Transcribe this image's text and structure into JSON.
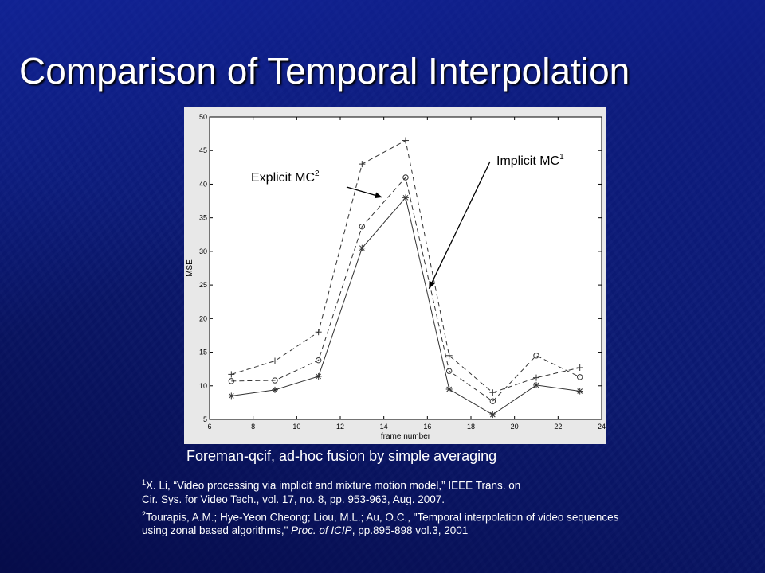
{
  "slide": {
    "title": "Comparison of Temporal Interpolation",
    "caption": "Foreman-qcif, ad-hoc fusion by simple averaging",
    "references": [
      {
        "marker": "1",
        "line1": "X. Li, “Video processing via implicit and mixture motion model,” IEEE Trans. on",
        "line2": "Cir. Sys. for Video Tech., vol. 17, no. 8, pp. 953-963, Aug. 2007."
      },
      {
        "marker": "2",
        "line1": "Tourapis, A.M.;  Hye-Yeon Cheong; Liou, M.L.; Au, O.C., \"Temporal interpolation of video sequences",
        "line2_pre": "using zonal based algorithms,\" ",
        "line2_italic": "Proc. of ICIP",
        "line2_post": ", pp.895-898 vol.3, 2001"
      }
    ]
  },
  "chart_data": {
    "type": "line",
    "xlabel": "frame number",
    "ylabel": "MSE",
    "xlim": [
      6,
      24
    ],
    "ylim": [
      5,
      50
    ],
    "xticks": [
      6,
      8,
      10,
      12,
      14,
      16,
      18,
      20,
      22,
      24
    ],
    "yticks": [
      5,
      10,
      15,
      20,
      25,
      30,
      35,
      40,
      45,
      50
    ],
    "grid": false,
    "x": [
      7,
      9,
      11,
      13,
      15,
      17,
      19,
      21,
      23
    ],
    "series": [
      {
        "key": "plus",
        "marker": "+",
        "line": "dashed",
        "color": "#333333",
        "values": [
          11.7,
          13.7,
          18.0,
          43.0,
          46.5,
          14.5,
          9.0,
          11.2,
          12.7
        ]
      },
      {
        "key": "circle",
        "marker": "o",
        "line": "dashed",
        "color": "#333333",
        "values": [
          10.7,
          10.8,
          13.8,
          33.7,
          41.0,
          12.2,
          7.7,
          14.5,
          11.3
        ]
      },
      {
        "key": "star",
        "marker": "*",
        "line": "solid",
        "color": "#333333",
        "values": [
          8.5,
          9.4,
          11.4,
          30.5,
          38.0,
          9.5,
          5.7,
          10.1,
          9.2
        ]
      }
    ],
    "annotations": [
      {
        "label": "Explicit MC",
        "sup": "2",
        "points_to": "circle",
        "at_x": 14
      },
      {
        "label": "Implicit MC",
        "sup": "1",
        "points_to": "star",
        "at_x": 16
      }
    ]
  }
}
